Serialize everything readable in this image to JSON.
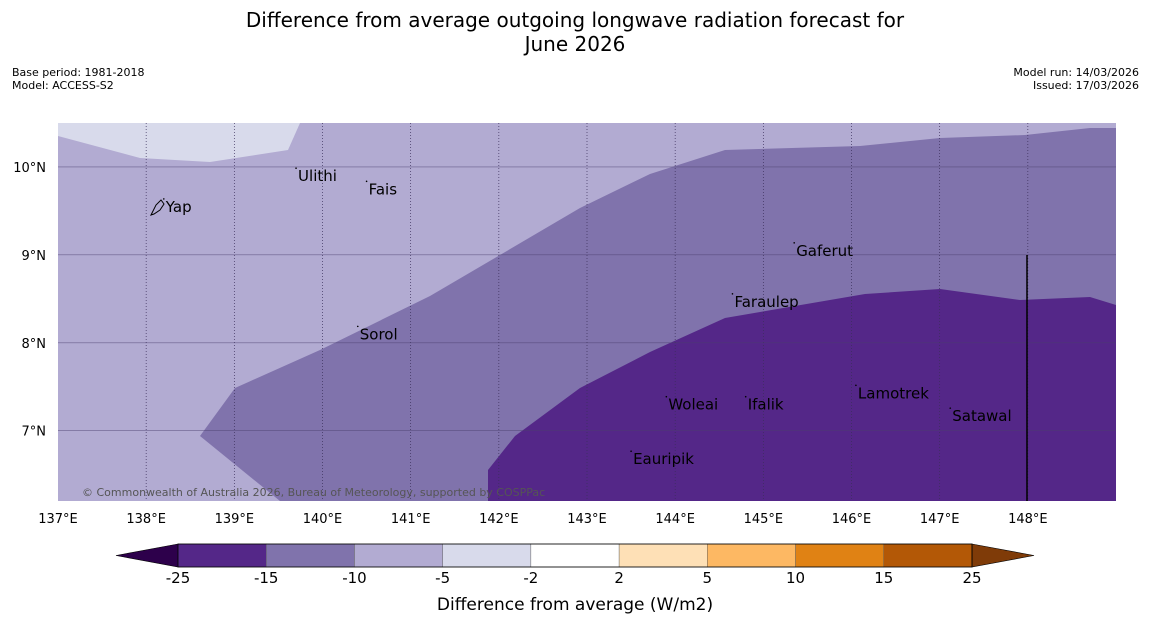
{
  "title": {
    "line1": "Difference from average outgoing longwave radiation forecast for",
    "line2": "June 2026"
  },
  "meta": {
    "base_period": "Base period: 1981-2018",
    "model": "Model: ACCESS-S2",
    "model_run": "Model run: 14/03/2026",
    "issued": "Issued: 17/03/2026"
  },
  "map": {
    "lon_range": [
      137,
      149
    ],
    "lat_range": [
      6.2,
      10.5
    ],
    "lon_ticks": [
      137,
      138,
      139,
      140,
      141,
      142,
      143,
      144,
      145,
      146,
      147,
      148
    ],
    "lon_tick_labels": [
      "137°E",
      "138°E",
      "139°E",
      "140°E",
      "141°E",
      "142°E",
      "143°E",
      "144°E",
      "145°E",
      "146°E",
      "147°E",
      "148°E"
    ],
    "lat_ticks": [
      7,
      8,
      9,
      10
    ],
    "lat_tick_labels": [
      "7°N",
      "8°N",
      "9°N",
      "10°N"
    ],
    "places": [
      {
        "name": "Yap",
        "lon": 138.2,
        "lat": 9.5
      },
      {
        "name": "Ulithi",
        "lon": 139.7,
        "lon_label": 139.65,
        "lat": 9.85
      },
      {
        "name": "Fais",
        "lon": 140.5,
        "lat": 9.7
      },
      {
        "name": "Gaferut",
        "lon": 145.35,
        "lat": 9.0
      },
      {
        "name": "Faraulep",
        "lon": 144.65,
        "lat": 8.42
      },
      {
        "name": "Sorol",
        "lon": 140.4,
        "lat": 8.05
      },
      {
        "name": "Woleai",
        "lon": 143.9,
        "lat": 7.25
      },
      {
        "name": "Ifalik",
        "lon": 144.8,
        "lat": 7.25
      },
      {
        "name": "Lamotrek",
        "lon": 146.05,
        "lat": 7.38
      },
      {
        "name": "Satawal",
        "lon": 147.12,
        "lat": 7.12
      },
      {
        "name": "Eauripik",
        "lon": 143.5,
        "lat": 6.63
      }
    ],
    "copyright": "© Commonwealth of Australia 2026, Bureau of Meteorology, supported by COSPPac"
  },
  "colorbar": {
    "title": "Difference from average (W/m2)",
    "levels": [
      "-25",
      "-15",
      "-10",
      "-5",
      "-2",
      "2",
      "5",
      "10",
      "15",
      "25"
    ],
    "colors": [
      "#542788",
      "#8073ac",
      "#b2abd2",
      "#d8daeb",
      "#ffffff",
      "#fee0b6",
      "#fdb863",
      "#e08214",
      "#b35806"
    ],
    "extend_low_color": "#2d004b",
    "extend_high_color": "#7f3b08"
  }
}
